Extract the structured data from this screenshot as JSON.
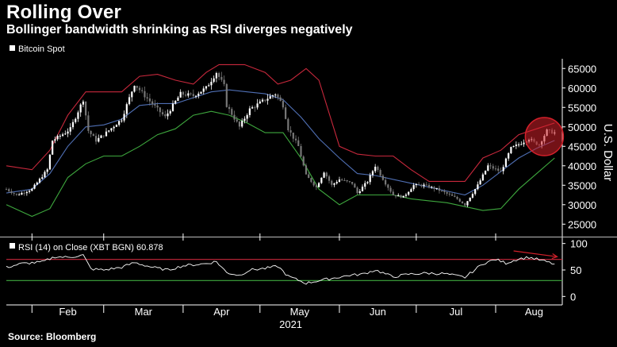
{
  "title": "Rolling Over",
  "subtitle": "Bollinger bandwidth shrinking as RSI diverges negatively",
  "source": "Source: Bloomberg",
  "chart_data": [
    {
      "type": "candlestick",
      "legend": "Bitcoin Spot",
      "ylabel": "U.S. Dollar",
      "ylim": [
        22000,
        67500
      ],
      "yticks": [
        25000,
        30000,
        35000,
        40000,
        45000,
        50000,
        55000,
        60000,
        65000
      ],
      "ytick_labels": [
        "25000",
        "30000",
        "35000",
        "40000",
        "45000",
        "50000",
        "55000",
        "60000",
        "65000"
      ],
      "xlim": [
        "2021-01-22",
        "2021-08-27"
      ],
      "x_tick_labels": [
        "Feb",
        "Mar",
        "Apr",
        "May",
        "Jun",
        "Jul",
        "Aug"
      ],
      "x_year_label": "2021",
      "series": [
        {
          "name": "Bitcoin Spot",
          "points": [
            [
              "2021-01-22",
              34000
            ],
            [
              "2021-01-26",
              32500
            ],
            [
              "2021-02-01",
              34000
            ],
            [
              "2021-02-07",
              39000
            ],
            [
              "2021-02-09",
              46500
            ],
            [
              "2021-02-14",
              48500
            ],
            [
              "2021-02-16",
              49500
            ],
            [
              "2021-02-21",
              57000
            ],
            [
              "2021-02-23",
              49000
            ],
            [
              "2021-02-26",
              46500
            ],
            [
              "2021-03-02",
              48500
            ],
            [
              "2021-03-08",
              52000
            ],
            [
              "2021-03-13",
              61000
            ],
            [
              "2021-03-17",
              58000
            ],
            [
              "2021-03-22",
              54500
            ],
            [
              "2021-03-25",
              52500
            ],
            [
              "2021-03-31",
              58500
            ],
            [
              "2021-04-05",
              58000
            ],
            [
              "2021-04-10",
              60000
            ],
            [
              "2021-04-14",
              64000
            ],
            [
              "2021-04-17",
              60500
            ],
            [
              "2021-04-18",
              55500
            ],
            [
              "2021-04-23",
              50000
            ],
            [
              "2021-04-27",
              54500
            ],
            [
              "2021-05-03",
              57000
            ],
            [
              "2021-05-07",
              58500
            ],
            [
              "2021-05-10",
              55500
            ],
            [
              "2021-05-12",
              49500
            ],
            [
              "2021-05-16",
              45000
            ],
            [
              "2021-05-19",
              37500
            ],
            [
              "2021-05-23",
              34500
            ],
            [
              "2021-05-26",
              38500
            ],
            [
              "2021-05-29",
              35000
            ],
            [
              "2021-06-01",
              36500
            ],
            [
              "2021-06-06",
              35500
            ],
            [
              "2021-06-08",
              33000
            ],
            [
              "2021-06-12",
              36000
            ],
            [
              "2021-06-15",
              40000
            ],
            [
              "2021-06-19",
              35500
            ],
            [
              "2021-06-22",
              32500
            ],
            [
              "2021-06-26",
              32000
            ],
            [
              "2021-06-30",
              35000
            ],
            [
              "2021-07-04",
              35000
            ],
            [
              "2021-07-09",
              34000
            ],
            [
              "2021-07-14",
              32500
            ],
            [
              "2021-07-17",
              31500
            ],
            [
              "2021-07-20",
              30000
            ],
            [
              "2021-07-25",
              35000
            ],
            [
              "2021-07-29",
              40000
            ],
            [
              "2021-08-03",
              38500
            ],
            [
              "2021-08-07",
              44500
            ],
            [
              "2021-08-10",
              45500
            ],
            [
              "2021-08-14",
              47000
            ],
            [
              "2021-08-16",
              46000
            ],
            [
              "2021-08-18",
              45500
            ],
            [
              "2021-08-21",
              49000
            ],
            [
              "2021-08-24",
              48500
            ]
          ]
        },
        {
          "name": "Bollinger upper band",
          "color": "#c8283c",
          "points": [
            [
              "2021-01-22",
              40000
            ],
            [
              "2021-02-01",
              39000
            ],
            [
              "2021-02-08",
              44000
            ],
            [
              "2021-02-15",
              53000
            ],
            [
              "2021-02-22",
              59000
            ],
            [
              "2021-03-01",
              59000
            ],
            [
              "2021-03-08",
              59000
            ],
            [
              "2021-03-15",
              63000
            ],
            [
              "2021-03-22",
              63500
            ],
            [
              "2021-03-29",
              62000
            ],
            [
              "2021-04-05",
              61000
            ],
            [
              "2021-04-10",
              64000
            ],
            [
              "2021-04-15",
              66000
            ],
            [
              "2021-04-25",
              66000
            ],
            [
              "2021-05-03",
              64000
            ],
            [
              "2021-05-08",
              61000
            ],
            [
              "2021-05-13",
              62000
            ],
            [
              "2021-05-19",
              65000
            ],
            [
              "2021-05-24",
              62000
            ],
            [
              "2021-06-01",
              45000
            ],
            [
              "2021-06-08",
              43000
            ],
            [
              "2021-06-15",
              42500
            ],
            [
              "2021-06-22",
              42500
            ],
            [
              "2021-06-29",
              39000
            ],
            [
              "2021-07-06",
              36000
            ],
            [
              "2021-07-13",
              36000
            ],
            [
              "2021-07-20",
              36000
            ],
            [
              "2021-07-27",
              42000
            ],
            [
              "2021-08-03",
              44000
            ],
            [
              "2021-08-10",
              48000
            ],
            [
              "2021-08-17",
              49500
            ],
            [
              "2021-08-24",
              51000
            ]
          ]
        },
        {
          "name": "Bollinger middle band",
          "color": "#4f6fb4",
          "points": [
            [
              "2021-01-22",
              33000
            ],
            [
              "2021-02-01",
              34000
            ],
            [
              "2021-02-08",
              38000
            ],
            [
              "2021-02-15",
              45000
            ],
            [
              "2021-02-22",
              50000
            ],
            [
              "2021-03-01",
              50500
            ],
            [
              "2021-03-08",
              52000
            ],
            [
              "2021-03-15",
              55500
            ],
            [
              "2021-03-22",
              56000
            ],
            [
              "2021-03-29",
              56000
            ],
            [
              "2021-04-05",
              57500
            ],
            [
              "2021-04-12",
              59000
            ],
            [
              "2021-04-19",
              59500
            ],
            [
              "2021-04-26",
              59000
            ],
            [
              "2021-05-03",
              58500
            ],
            [
              "2021-05-10",
              57000
            ],
            [
              "2021-05-17",
              52500
            ],
            [
              "2021-05-24",
              47000
            ],
            [
              "2021-06-01",
              42000
            ],
            [
              "2021-06-08",
              38000
            ],
            [
              "2021-06-15",
              37500
            ],
            [
              "2021-06-22",
              36500
            ],
            [
              "2021-06-29",
              35500
            ],
            [
              "2021-07-06",
              34500
            ],
            [
              "2021-07-13",
              33500
            ],
            [
              "2021-07-20",
              32500
            ],
            [
              "2021-07-27",
              35000
            ],
            [
              "2021-08-03",
              38500
            ],
            [
              "2021-08-10",
              42000
            ],
            [
              "2021-08-17",
              44500
            ],
            [
              "2021-08-24",
              46500
            ]
          ]
        },
        {
          "name": "Bollinger lower band",
          "color": "#3ea83e",
          "points": [
            [
              "2021-01-22",
              30000
            ],
            [
              "2021-02-01",
              27000
            ],
            [
              "2021-02-08",
              29000
            ],
            [
              "2021-02-15",
              37000
            ],
            [
              "2021-02-22",
              40500
            ],
            [
              "2021-03-01",
              42500
            ],
            [
              "2021-03-08",
              42500
            ],
            [
              "2021-03-15",
              45000
            ],
            [
              "2021-03-22",
              48000
            ],
            [
              "2021-03-29",
              49500
            ],
            [
              "2021-04-05",
              53000
            ],
            [
              "2021-04-12",
              54000
            ],
            [
              "2021-04-19",
              53000
            ],
            [
              "2021-04-26",
              51000
            ],
            [
              "2021-05-03",
              48500
            ],
            [
              "2021-05-10",
              48500
            ],
            [
              "2021-05-17",
              42000
            ],
            [
              "2021-05-24",
              34000
            ],
            [
              "2021-06-01",
              30000
            ],
            [
              "2021-06-08",
              32500
            ],
            [
              "2021-06-15",
              32500
            ],
            [
              "2021-06-22",
              32500
            ],
            [
              "2021-06-29",
              31500
            ],
            [
              "2021-07-06",
              31000
            ],
            [
              "2021-07-13",
              30500
            ],
            [
              "2021-07-20",
              29500
            ],
            [
              "2021-07-27",
              28500
            ],
            [
              "2021-08-03",
              29000
            ],
            [
              "2021-08-10",
              34000
            ],
            [
              "2021-08-17",
              38000
            ],
            [
              "2021-08-24",
              42000
            ]
          ]
        }
      ],
      "annotations": [
        {
          "type": "circle",
          "color": "#d4202a",
          "center": [
            "2021-08-20",
            47500
          ]
        }
      ]
    },
    {
      "type": "line",
      "legend": "RSI (14)  on Close (XBT BGN) 60.878",
      "ylim": [
        -10,
        110
      ],
      "yticks": [
        0,
        50,
        100
      ],
      "ytick_labels": [
        "0",
        "50",
        "100"
      ],
      "reference_lines": [
        {
          "value": 70,
          "color": "#c8283c"
        },
        {
          "value": 30,
          "color": "#3ea83e"
        }
      ],
      "series": [
        {
          "name": "RSI (14)",
          "color": "#ffffff",
          "points": [
            [
              "2021-01-22",
              55
            ],
            [
              "2021-01-28",
              62
            ],
            [
              "2021-02-05",
              65
            ],
            [
              "2021-02-10",
              75
            ],
            [
              "2021-02-15",
              74
            ],
            [
              "2021-02-21",
              78
            ],
            [
              "2021-02-24",
              52
            ],
            [
              "2021-03-01",
              50
            ],
            [
              "2021-03-08",
              55
            ],
            [
              "2021-03-13",
              64
            ],
            [
              "2021-03-20",
              55
            ],
            [
              "2021-03-26",
              50
            ],
            [
              "2021-04-01",
              58
            ],
            [
              "2021-04-10",
              62
            ],
            [
              "2021-04-14",
              66
            ],
            [
              "2021-04-18",
              45
            ],
            [
              "2021-04-23",
              40
            ],
            [
              "2021-04-27",
              50
            ],
            [
              "2021-05-03",
              53
            ],
            [
              "2021-05-08",
              57
            ],
            [
              "2021-05-12",
              38
            ],
            [
              "2021-05-19",
              25
            ],
            [
              "2021-05-24",
              30
            ],
            [
              "2021-05-30",
              35
            ],
            [
              "2021-06-05",
              40
            ],
            [
              "2021-06-10",
              42
            ],
            [
              "2021-06-15",
              50
            ],
            [
              "2021-06-22",
              37
            ],
            [
              "2021-06-28",
              42
            ],
            [
              "2021-07-05",
              44
            ],
            [
              "2021-07-12",
              43
            ],
            [
              "2021-07-20",
              36
            ],
            [
              "2021-07-27",
              62
            ],
            [
              "2021-08-01",
              70
            ],
            [
              "2021-08-05",
              63
            ],
            [
              "2021-08-10",
              71
            ],
            [
              "2021-08-14",
              74
            ],
            [
              "2021-08-19",
              68
            ],
            [
              "2021-08-24",
              61
            ]
          ]
        }
      ],
      "annotations": [
        {
          "type": "arrow",
          "color": "#d4202a",
          "from": [
            "2021-08-08",
            86
          ],
          "to": [
            "2021-08-25",
            75
          ]
        }
      ]
    }
  ]
}
